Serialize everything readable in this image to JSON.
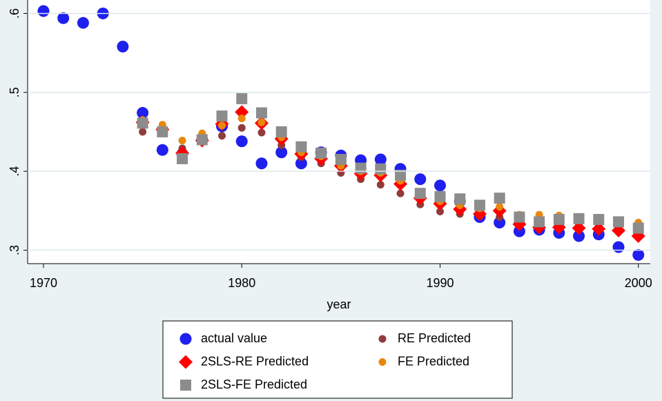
{
  "chart_data": {
    "type": "scatter",
    "x_label": "year",
    "x": [
      1970,
      1971,
      1972,
      1973,
      1974,
      1975,
      1976,
      1977,
      1978,
      1979,
      1980,
      1981,
      1982,
      1983,
      1984,
      1985,
      1986,
      1987,
      1988,
      1989,
      1990,
      1991,
      1992,
      1993,
      1994,
      1995,
      1996,
      1997,
      1998,
      1999,
      2000
    ],
    "xlim": [
      1969.2,
      2000.6
    ],
    "xticks": [
      1970,
      1980,
      1990,
      2000
    ],
    "ylim": [
      0.283,
      0.617
    ],
    "yticks": [
      {
        "value": 0.3,
        "label": ".3"
      },
      {
        "value": 0.4,
        "label": ".4"
      },
      {
        "value": 0.5,
        "label": ".5"
      },
      {
        "value": 0.6,
        "label": ".6"
      }
    ],
    "grid": true,
    "series": [
      {
        "name": "actual value",
        "color": "#1f1fee",
        "marker": "circle",
        "values": [
          0.603,
          0.594,
          0.588,
          0.6,
          0.558,
          0.474,
          0.427,
          0.422,
          0.44,
          0.457,
          0.438,
          0.41,
          0.424,
          0.41,
          0.424,
          0.42,
          0.414,
          0.415,
          0.403,
          0.39,
          0.382,
          0.362,
          0.342,
          0.335,
          0.324,
          0.326,
          0.322,
          0.318,
          0.32,
          0.304,
          0.294
        ]
      },
      {
        "name": "RE Predicted",
        "color": "#913b3b",
        "marker": "dot",
        "values": [
          null,
          null,
          null,
          null,
          null,
          0.45,
          0.455,
          0.429,
          0.437,
          0.445,
          0.455,
          0.449,
          0.433,
          0.418,
          0.41,
          0.398,
          0.39,
          0.383,
          0.372,
          0.358,
          0.349,
          0.346,
          0.343,
          0.342,
          0.333,
          0.333,
          0.333,
          0.332,
          0.333,
          0.333,
          0.325
        ]
      },
      {
        "name": "2SLS-RE Predicted",
        "color": "#ff0000",
        "marker": "diamond",
        "values": [
          null,
          null,
          null,
          null,
          null,
          0.462,
          0.453,
          0.423,
          0.439,
          0.46,
          0.475,
          0.461,
          0.441,
          0.422,
          0.416,
          0.407,
          0.397,
          0.395,
          0.384,
          0.366,
          0.359,
          0.352,
          0.346,
          0.35,
          0.333,
          0.329,
          0.329,
          0.328,
          0.327,
          0.325,
          0.318
        ]
      },
      {
        "name": "FE Predicted",
        "color": "#e8870c",
        "marker": "dot",
        "values": [
          null,
          null,
          null,
          null,
          null,
          0.465,
          0.459,
          0.439,
          0.448,
          0.458,
          0.467,
          0.462,
          0.443,
          0.424,
          0.419,
          0.407,
          0.4,
          0.398,
          0.388,
          0.37,
          0.362,
          0.357,
          0.353,
          0.355,
          0.345,
          0.345,
          0.344,
          0.34,
          0.337,
          0.337,
          0.335
        ]
      },
      {
        "name": "2SLS-FE Predicted",
        "color": "#8c8c8c",
        "marker": "square",
        "values": [
          null,
          null,
          null,
          null,
          null,
          0.461,
          0.45,
          0.416,
          0.44,
          0.47,
          0.492,
          0.474,
          0.45,
          0.431,
          0.423,
          0.415,
          0.404,
          0.403,
          0.395,
          0.372,
          0.368,
          0.365,
          0.357,
          0.366,
          0.342,
          0.336,
          0.339,
          0.34,
          0.339,
          0.336,
          0.328
        ]
      }
    ]
  }
}
